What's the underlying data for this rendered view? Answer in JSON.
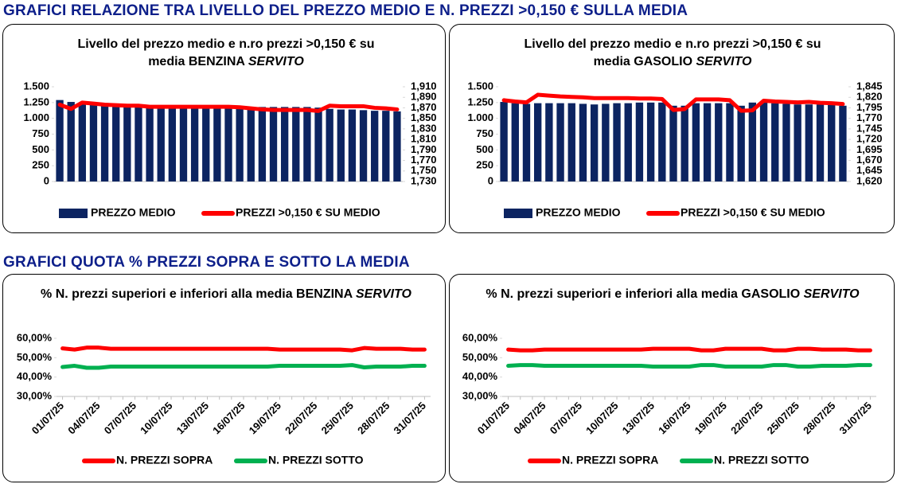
{
  "headings": [
    "GRAFICI RELAZIONE TRA LIVELLO DEL PREZZO MEDIO E N. PREZZI >0,150 € SULLA MEDIA",
    "GRAFICI QUOTA % PREZZI SOPRA E SOTTO LA MEDIA"
  ],
  "chart_data": [
    {
      "type": "bar_line",
      "title": "Livello del prezzo medio e n.ro prezzi >0,150 € su media BENZINA",
      "subtitle": "SERVITO",
      "ylim": [
        0,
        1500
      ],
      "yticks": [
        0,
        250,
        500,
        750,
        {
          "value": 1000,
          "label": "1.000"
        },
        {
          "value": 1250,
          "label": "1.250"
        },
        {
          "value": 1500,
          "label": "1.500"
        }
      ],
      "y2lim": [
        1.73,
        1.91
      ],
      "y2ticks": [
        {
          "value": 1.73,
          "label": "1,730"
        },
        {
          "value": 1.75,
          "label": "1,750"
        },
        {
          "value": 1.77,
          "label": "1,770"
        },
        {
          "value": 1.79,
          "label": "1,790"
        },
        {
          "value": 1.81,
          "label": "1,810"
        },
        {
          "value": 1.83,
          "label": "1,830"
        },
        {
          "value": 1.85,
          "label": "1,850"
        },
        {
          "value": 1.87,
          "label": "1,870"
        },
        {
          "value": 1.89,
          "label": "1,890"
        },
        {
          "value": 1.91,
          "label": "1,910"
        }
      ],
      "series": [
        {
          "name": "PREZZO MEDIO",
          "color": "#0c2461",
          "values": [
            1290,
            1260,
            1220,
            1230,
            1210,
            1200,
            1190,
            1180,
            1180,
            1170,
            1170,
            1170,
            1170,
            1160,
            1160,
            1160,
            1160,
            1170,
            1180,
            1180,
            1180,
            1180,
            1180,
            1170,
            1150,
            1140,
            1140,
            1130,
            1120,
            1120,
            1110
          ]
        },
        {
          "name": "PREZZI >0,150 € SU MEDIO",
          "color": "#ff0000",
          "axis": "y2",
          "values": [
            1.876,
            1.868,
            1.88,
            1.878,
            1.876,
            1.875,
            1.874,
            1.874,
            1.872,
            1.872,
            1.872,
            1.872,
            1.872,
            1.872,
            1.872,
            1.872,
            1.871,
            1.869,
            1.867,
            1.866,
            1.866,
            1.866,
            1.866,
            1.864,
            1.874,
            1.873,
            1.873,
            1.873,
            1.87,
            1.869,
            1.867
          ]
        }
      ]
    },
    {
      "type": "bar_line",
      "title": "Livello del prezzo medio e n.ro prezzi >0,150 € su media GASOLIO",
      "subtitle": "SERVITO",
      "ylim": [
        0,
        1500
      ],
      "yticks": [
        0,
        250,
        500,
        750,
        {
          "value": 1000,
          "label": "1.000"
        },
        {
          "value": 1250,
          "label": "1.250"
        },
        {
          "value": 1500,
          "label": "1.500"
        }
      ],
      "y2lim": [
        1.62,
        1.845
      ],
      "y2ticks": [
        {
          "value": 1.62,
          "label": "1,620"
        },
        {
          "value": 1.645,
          "label": "1,645"
        },
        {
          "value": 1.67,
          "label": "1,670"
        },
        {
          "value": 1.695,
          "label": "1,695"
        },
        {
          "value": 1.72,
          "label": "1,720"
        },
        {
          "value": 1.745,
          "label": "1,745"
        },
        {
          "value": 1.77,
          "label": "1,770"
        },
        {
          "value": 1.795,
          "label": "1,795"
        },
        {
          "value": 1.82,
          "label": "1,820"
        },
        {
          "value": 1.845,
          "label": "1,845"
        }
      ],
      "series": [
        {
          "name": "PREZZO MEDIO",
          "color": "#0c2461",
          "values": [
            1260,
            1240,
            1230,
            1240,
            1240,
            1240,
            1240,
            1230,
            1220,
            1230,
            1240,
            1240,
            1250,
            1250,
            1250,
            1200,
            1200,
            1240,
            1240,
            1240,
            1240,
            1200,
            1250,
            1250,
            1240,
            1230,
            1220,
            1220,
            1220,
            1210,
            1200
          ]
        },
        {
          "name": "PREZZI >0,150 € SU MEDIO",
          "color": "#ff0000",
          "axis": "y2",
          "values": [
            1.813,
            1.81,
            1.808,
            1.826,
            1.824,
            1.822,
            1.821,
            1.82,
            1.818,
            1.818,
            1.818,
            1.818,
            1.817,
            1.817,
            1.816,
            1.79,
            1.792,
            1.815,
            1.815,
            1.815,
            1.813,
            1.788,
            1.789,
            1.812,
            1.81,
            1.809,
            1.808,
            1.809,
            1.807,
            1.806,
            1.804
          ]
        }
      ]
    },
    {
      "type": "line",
      "title": "% N. prezzi superiori e inferiori alla media BENZINA",
      "subtitle": "SERVITO",
      "x": [
        "01/07/25",
        null,
        null,
        "04/07/25",
        null,
        null,
        "07/07/25",
        null,
        null,
        "10/07/25",
        null,
        null,
        "13/07/25",
        null,
        null,
        "16/07/25",
        null,
        null,
        "19/07/25",
        null,
        null,
        "22/07/25",
        null,
        null,
        "25/07/25",
        null,
        null,
        "28/07/25",
        null,
        null,
        "31/07/25"
      ],
      "ylim": [
        30,
        60
      ],
      "yticks": [
        {
          "value": 30,
          "label": "30,00%"
        },
        {
          "value": 40,
          "label": "40,00%"
        },
        {
          "value": 50,
          "label": "50,00%"
        },
        {
          "value": 60,
          "label": "60,00%"
        }
      ],
      "series": [
        {
          "name": "N. PREZZI SOPRA",
          "color": "#ff0000",
          "values": [
            54.8,
            54.2,
            55.2,
            55.2,
            54.6,
            54.6,
            54.6,
            54.6,
            54.6,
            54.6,
            54.6,
            54.6,
            54.6,
            54.6,
            54.6,
            54.6,
            54.6,
            54.6,
            54.2,
            54.2,
            54.2,
            54.2,
            54.2,
            54.2,
            53.8,
            55.0,
            54.6,
            54.6,
            54.6,
            54.2,
            54.2
          ]
        },
        {
          "name": "N. PREZZI SOTTO",
          "color": "#00b050",
          "values": [
            45.2,
            45.8,
            44.8,
            44.8,
            45.4,
            45.4,
            45.4,
            45.4,
            45.4,
            45.4,
            45.4,
            45.4,
            45.4,
            45.4,
            45.4,
            45.4,
            45.4,
            45.4,
            45.8,
            45.8,
            45.8,
            45.8,
            45.8,
            45.8,
            46.2,
            45.0,
            45.4,
            45.4,
            45.4,
            45.8,
            45.8
          ]
        }
      ]
    },
    {
      "type": "line",
      "title": "% N. prezzi superiori e inferiori alla media GASOLIO",
      "subtitle": "SERVITO",
      "x": [
        "01/07/25",
        null,
        null,
        "04/07/25",
        null,
        null,
        "07/07/25",
        null,
        null,
        "10/07/25",
        null,
        null,
        "13/07/25",
        null,
        null,
        "16/07/25",
        null,
        null,
        "19/07/25",
        null,
        null,
        "22/07/25",
        null,
        null,
        "25/07/25",
        null,
        null,
        "28/07/25",
        null,
        null,
        "31/07/25"
      ],
      "ylim": [
        30,
        60
      ],
      "yticks": [
        {
          "value": 30,
          "label": "30,00%"
        },
        {
          "value": 40,
          "label": "40,00%"
        },
        {
          "value": 50,
          "label": "50,00%"
        },
        {
          "value": 60,
          "label": "60,00%"
        }
      ],
      "series": [
        {
          "name": "N. PREZZI SOPRA",
          "color": "#ff0000",
          "values": [
            54.2,
            53.8,
            53.8,
            54.2,
            54.2,
            54.2,
            54.2,
            54.2,
            54.2,
            54.2,
            54.2,
            54.2,
            54.6,
            54.6,
            54.6,
            54.6,
            53.8,
            53.8,
            54.6,
            54.6,
            54.6,
            54.6,
            53.8,
            53.8,
            54.6,
            54.6,
            54.2,
            54.2,
            54.2,
            53.8,
            53.8
          ]
        },
        {
          "name": "N. PREZZI SOTTO",
          "color": "#00b050",
          "values": [
            45.8,
            46.2,
            46.2,
            45.8,
            45.8,
            45.8,
            45.8,
            45.8,
            45.8,
            45.8,
            45.8,
            45.8,
            45.4,
            45.4,
            45.4,
            45.4,
            46.2,
            46.2,
            45.4,
            45.4,
            45.4,
            45.4,
            46.2,
            46.2,
            45.4,
            45.4,
            45.8,
            45.8,
            45.8,
            46.2,
            46.2
          ]
        }
      ]
    }
  ]
}
